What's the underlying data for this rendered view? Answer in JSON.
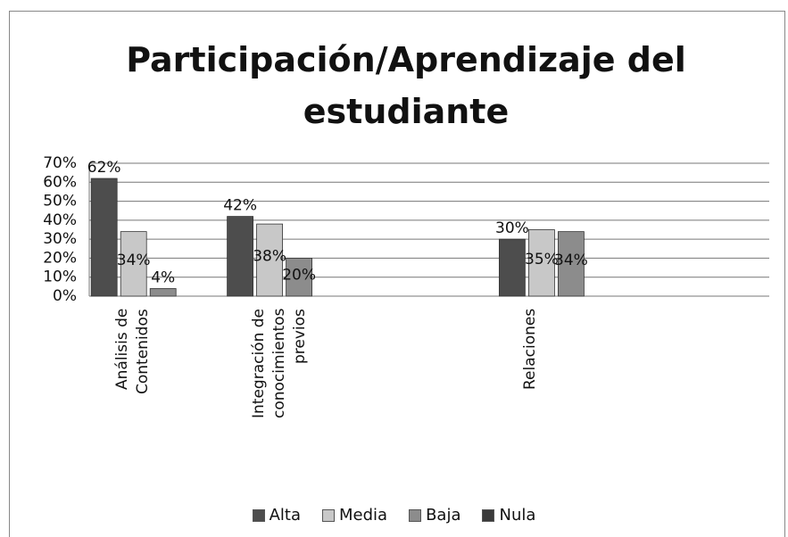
{
  "chart_data": {
    "type": "bar",
    "title": "Participación/Aprendizaje del estudiante",
    "categories": [
      "Análisis de Contenidos",
      "Integración de conocimientos previos",
      null,
      "Relaciones",
      null
    ],
    "series": [
      {
        "name": "Alta",
        "color": "#4d4d4d",
        "values": [
          62,
          42,
          null,
          30,
          null
        ],
        "value_labels": [
          "62%",
          "42%",
          null,
          "30%",
          null
        ]
      },
      {
        "name": "Media",
        "color": "#c8c8c8",
        "values": [
          34,
          38,
          null,
          35,
          null
        ],
        "value_labels": [
          "34%",
          "38%",
          null,
          "35%",
          null
        ]
      },
      {
        "name": "Baja",
        "color": "#8c8c8c",
        "values": [
          4,
          20,
          null,
          34,
          null
        ],
        "value_labels": [
          "4%",
          "20%",
          null,
          "34%",
          null
        ]
      },
      {
        "name": "Nula",
        "color": "#3a3a3a",
        "values": [
          null,
          null,
          null,
          null,
          null
        ]
      }
    ],
    "ylim": [
      0,
      70
    ],
    "yticks": [
      {
        "value": 0,
        "label": "0%"
      },
      {
        "value": 10,
        "label": "10%"
      },
      {
        "value": 20,
        "label": "20%"
      },
      {
        "value": 30,
        "label": "30%"
      },
      {
        "value": 40,
        "label": "40%"
      },
      {
        "value": 50,
        "label": "50%"
      },
      {
        "value": 60,
        "label": "60%"
      },
      {
        "value": 70,
        "label": "70%"
      }
    ],
    "grid": true,
    "legend": "bottom"
  }
}
